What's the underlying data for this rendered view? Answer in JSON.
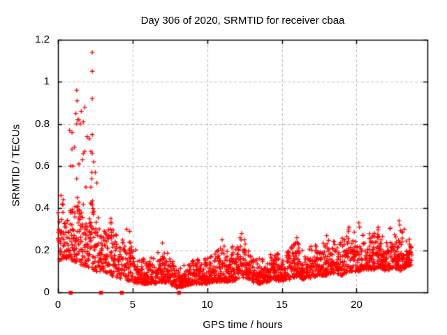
{
  "chart_data": {
    "type": "scatter",
    "title": "Day 306 of 2020, SRMTID for receiver cbaa",
    "xlabel": "GPS time / hours",
    "ylabel": "SRMTID / TECUs",
    "xlim": [
      0,
      24.75
    ],
    "ylim": [
      0,
      1.2
    ],
    "xticks": [
      0,
      5,
      10,
      15,
      20
    ],
    "yticks": [
      "0",
      "0.2",
      "0.4",
      "0.6",
      "0.8",
      "1",
      "1.2"
    ],
    "grid": true,
    "grid_style": "dashed",
    "grid_color": "#b9b9b9",
    "legend": false,
    "marker": "plus",
    "marker_color": "#ff0000",
    "border_color": "#000000",
    "approx_point_count": 2300,
    "seed": 42,
    "series_description": "Dense red plus-marker scatter: high spike cluster between hours 0.6-2.6 peaking at 1.15 TECUs near hour 2.3; low band 0.05-0.3 elsewhere with minimum near hour 8 and gradual rise after hour 15.",
    "band": [
      [
        0.0,
        0.15,
        0.45
      ],
      [
        0.5,
        0.16,
        0.4
      ],
      [
        1.0,
        0.15,
        0.44
      ],
      [
        1.5,
        0.13,
        0.46
      ],
      [
        2.0,
        0.12,
        0.45
      ],
      [
        2.5,
        0.1,
        0.44
      ],
      [
        3.0,
        0.1,
        0.36
      ],
      [
        3.5,
        0.08,
        0.32
      ],
      [
        4.0,
        0.07,
        0.26
      ],
      [
        4.5,
        0.06,
        0.28
      ],
      [
        5.0,
        0.05,
        0.22
      ],
      [
        5.5,
        0.04,
        0.18
      ],
      [
        6.0,
        0.04,
        0.16
      ],
      [
        6.5,
        0.04,
        0.17
      ],
      [
        7.0,
        0.05,
        0.22
      ],
      [
        7.5,
        0.04,
        0.17
      ],
      [
        8.0,
        0.02,
        0.11
      ],
      [
        8.5,
        0.03,
        0.13
      ],
      [
        9.0,
        0.04,
        0.15
      ],
      [
        9.5,
        0.04,
        0.16
      ],
      [
        10.0,
        0.04,
        0.16
      ],
      [
        10.5,
        0.05,
        0.18
      ],
      [
        11.0,
        0.05,
        0.23
      ],
      [
        11.5,
        0.05,
        0.19
      ],
      [
        12.0,
        0.06,
        0.26
      ],
      [
        12.5,
        0.07,
        0.24
      ],
      [
        13.0,
        0.05,
        0.18
      ],
      [
        13.5,
        0.04,
        0.16
      ],
      [
        14.0,
        0.05,
        0.17
      ],
      [
        14.5,
        0.06,
        0.19
      ],
      [
        15.0,
        0.05,
        0.18
      ],
      [
        15.5,
        0.06,
        0.21
      ],
      [
        16.0,
        0.07,
        0.24
      ],
      [
        16.5,
        0.06,
        0.2
      ],
      [
        17.0,
        0.07,
        0.22
      ],
      [
        17.5,
        0.08,
        0.23
      ],
      [
        18.0,
        0.08,
        0.25
      ],
      [
        18.5,
        0.09,
        0.24
      ],
      [
        19.0,
        0.08,
        0.27
      ],
      [
        19.5,
        0.1,
        0.3
      ],
      [
        20.0,
        0.1,
        0.28
      ],
      [
        20.5,
        0.1,
        0.27
      ],
      [
        21.0,
        0.1,
        0.29
      ],
      [
        21.5,
        0.12,
        0.31
      ],
      [
        22.0,
        0.1,
        0.29
      ],
      [
        22.5,
        0.12,
        0.32
      ],
      [
        23.0,
        0.1,
        0.29
      ],
      [
        23.3,
        0.12,
        0.27
      ],
      [
        23.7,
        0.13,
        0.24
      ]
    ],
    "outliers": [
      [
        0.2,
        0.46
      ],
      [
        0.35,
        0.44
      ],
      [
        0.78,
        0.77
      ],
      [
        0.86,
        0.6
      ],
      [
        0.94,
        0.76
      ],
      [
        0.94,
        0.68
      ],
      [
        1.0,
        0.6
      ],
      [
        1.1,
        0.69
      ],
      [
        1.2,
        0.85
      ],
      [
        1.25,
        0.96
      ],
      [
        1.25,
        0.8
      ],
      [
        1.25,
        0.54
      ],
      [
        1.28,
        0.91
      ],
      [
        1.32,
        0.82
      ],
      [
        1.4,
        0.82
      ],
      [
        1.4,
        0.61
      ],
      [
        1.5,
        0.8
      ],
      [
        1.56,
        0.86
      ],
      [
        1.64,
        0.63
      ],
      [
        1.7,
        0.81
      ],
      [
        1.7,
        0.66
      ],
      [
        1.8,
        0.88
      ],
      [
        1.8,
        0.67
      ],
      [
        1.87,
        0.5
      ],
      [
        1.95,
        0.74
      ],
      [
        2.1,
        0.73
      ],
      [
        2.2,
        0.67
      ],
      [
        2.2,
        0.5
      ],
      [
        2.27,
        0.57
      ],
      [
        2.27,
        0.54
      ],
      [
        2.3,
        1.14
      ],
      [
        2.3,
        1.05
      ],
      [
        2.3,
        0.92
      ],
      [
        2.3,
        0.75
      ],
      [
        2.3,
        0.66
      ],
      [
        2.4,
        0.62
      ],
      [
        2.5,
        0.57
      ],
      [
        2.6,
        0.52
      ],
      [
        3.5,
        0.33
      ],
      [
        3.55,
        0.35
      ],
      [
        3.6,
        0.33
      ],
      [
        4.6,
        0.3
      ],
      [
        4.8,
        0.29
      ],
      [
        7.0,
        0.235
      ],
      [
        11.0,
        0.25
      ],
      [
        12.2,
        0.26
      ],
      [
        12.3,
        0.28
      ],
      [
        12.5,
        0.25
      ],
      [
        16.0,
        0.26
      ],
      [
        18.0,
        0.27
      ],
      [
        19.5,
        0.31
      ],
      [
        20.15,
        0.33
      ],
      [
        20.2,
        0.31
      ],
      [
        21.45,
        0.31
      ],
      [
        22.85,
        0.34
      ],
      [
        22.9,
        0.32
      ],
      [
        23.2,
        0.3
      ]
    ],
    "zero_squares_x": [
      0.85,
      2.88,
      4.27,
      8.1
    ]
  }
}
